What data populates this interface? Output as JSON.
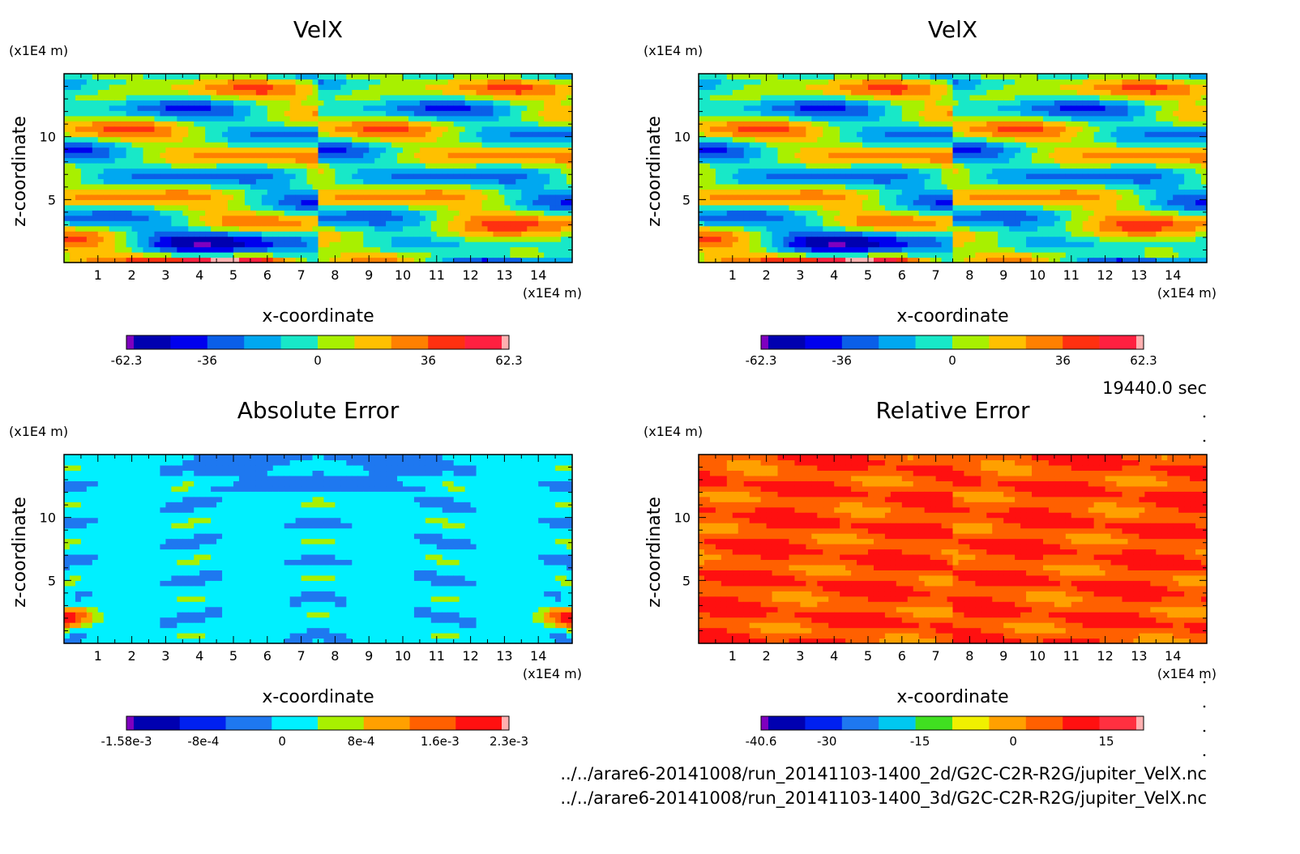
{
  "time_label": "19440.0 sec",
  "files": [
    "../../arare6-20141008/run_20141103-1400_2d/G2C-C2R-R2G/jupiter_VelX.nc",
    "../../arare6-20141008/run_20141103-1400_3d/G2C-C2R-R2G/jupiter_VelX.nc"
  ],
  "chart_data": [
    {
      "type": "heatmap",
      "title": "VelX",
      "xlabel": "x-coordinate",
      "ylabel": "z-coordinate",
      "x_unit": "(x1E4 m)",
      "y_unit": "(x1E4 m)",
      "xlim": [
        0,
        15
      ],
      "ylim": [
        0,
        15
      ],
      "x_ticks": [
        "1",
        "2",
        "3",
        "4",
        "5",
        "6",
        "7",
        "8",
        "9",
        "10",
        "11",
        "12",
        "13",
        "14"
      ],
      "y_ticks": [
        "5",
        "10"
      ],
      "colorbar": {
        "colors": [
          "#7f00bf",
          "#0000b0",
          "#0000ee",
          "#0a5fe8",
          "#00a8f0",
          "#18e8c8",
          "#a8f000",
          "#ffc000",
          "#ff8000",
          "#ff3010",
          "#ff2040",
          "#ffb0b0"
        ],
        "labels": [
          "-62.3",
          "-36",
          "0",
          "36",
          "62.3"
        ],
        "min": -62.3,
        "max": 62.3
      },
      "field": "velx"
    },
    {
      "type": "heatmap",
      "title": "VelX",
      "xlabel": "x-coordinate",
      "ylabel": "z-coordinate",
      "x_unit": "(x1E4 m)",
      "y_unit": "(x1E4 m)",
      "xlim": [
        0,
        15
      ],
      "ylim": [
        0,
        15
      ],
      "x_ticks": [
        "1",
        "2",
        "3",
        "4",
        "5",
        "6",
        "7",
        "8",
        "9",
        "10",
        "11",
        "12",
        "13",
        "14"
      ],
      "y_ticks": [
        "5",
        "10"
      ],
      "colorbar": {
        "colors": [
          "#7f00bf",
          "#0000b0",
          "#0000ee",
          "#0a5fe8",
          "#00a8f0",
          "#18e8c8",
          "#a8f000",
          "#ffc000",
          "#ff8000",
          "#ff3010",
          "#ff2040",
          "#ffb0b0"
        ],
        "labels": [
          "-62.3",
          "-36",
          "0",
          "36",
          "62.3"
        ],
        "min": -62.3,
        "max": 62.3
      },
      "field": "velx"
    },
    {
      "type": "heatmap",
      "title": "Absolute Error",
      "xlabel": "x-coordinate",
      "ylabel": "z-coordinate",
      "x_unit": "(x1E4 m)",
      "y_unit": "(x1E4 m)",
      "xlim": [
        0,
        15
      ],
      "ylim": [
        0,
        15
      ],
      "x_ticks": [
        "1",
        "2",
        "3",
        "4",
        "5",
        "6",
        "7",
        "8",
        "9",
        "10",
        "11",
        "12",
        "13",
        "14"
      ],
      "y_ticks": [
        "5",
        "10"
      ],
      "colorbar": {
        "colors": [
          "#7f00bf",
          "#0000b0",
          "#0020f0",
          "#1e78f0",
          "#00f0ff",
          "#a8f000",
          "#ffa000",
          "#ff6000",
          "#ff1010",
          "#ffb0b0"
        ],
        "labels": [
          "-1.58e-3",
          "-8e-4",
          "0",
          "8e-4",
          "1.6e-3",
          "2.3e-3"
        ],
        "min": -0.00158,
        "max": 0.0023
      },
      "field": "abserr"
    },
    {
      "type": "heatmap",
      "title": "Relative Error",
      "xlabel": "x-coordinate",
      "ylabel": "z-coordinate",
      "x_unit": "(x1E4 m)",
      "y_unit": "(x1E4 m)",
      "xlim": [
        0,
        15
      ],
      "ylim": [
        0,
        15
      ],
      "x_ticks": [
        "1",
        "2",
        "3",
        "4",
        "5",
        "6",
        "7",
        "8",
        "9",
        "10",
        "11",
        "12",
        "13",
        "14"
      ],
      "y_ticks": [
        "5",
        "10"
      ],
      "colorbar": {
        "colors": [
          "#7f00bf",
          "#0000b0",
          "#0020f0",
          "#1e78f0",
          "#00c8f0",
          "#40e020",
          "#f0f000",
          "#ffa000",
          "#ff6000",
          "#ff1010",
          "#ff3040",
          "#ffb0b0"
        ],
        "labels": [
          "-40.6",
          "-30",
          "-15",
          "0",
          "15"
        ],
        "min": -40.6,
        "max": 21.0
      },
      "field": "relerr"
    }
  ]
}
